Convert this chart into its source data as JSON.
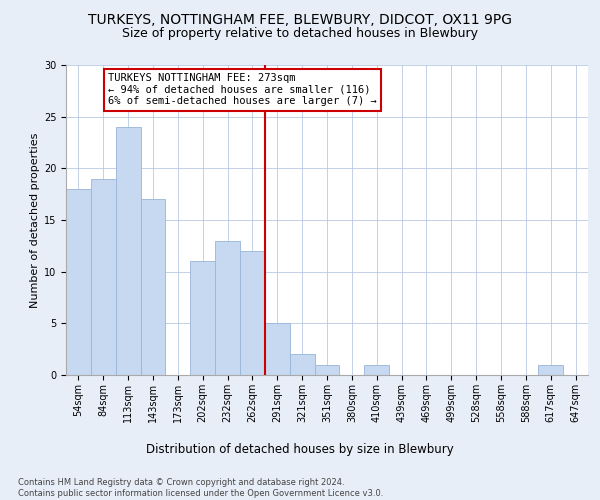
{
  "title": "TURKEYS, NOTTINGHAM FEE, BLEWBURY, DIDCOT, OX11 9PG",
  "subtitle": "Size of property relative to detached houses in Blewbury",
  "xlabel": "Distribution of detached houses by size in Blewbury",
  "ylabel": "Number of detached properties",
  "categories": [
    "54sqm",
    "84sqm",
    "113sqm",
    "143sqm",
    "173sqm",
    "202sqm",
    "232sqm",
    "262sqm",
    "291sqm",
    "321sqm",
    "351sqm",
    "380sqm",
    "410sqm",
    "439sqm",
    "469sqm",
    "499sqm",
    "528sqm",
    "558sqm",
    "588sqm",
    "617sqm",
    "647sqm"
  ],
  "values": [
    18,
    19,
    24,
    17,
    0,
    11,
    13,
    12,
    5,
    2,
    1,
    0,
    1,
    0,
    0,
    0,
    0,
    0,
    0,
    1,
    0
  ],
  "bar_color": "#c6d9f1",
  "bar_edge_color": "#9ab5d9",
  "vline_color": "#cc0000",
  "vline_pos": 7.5,
  "annotation_text": "TURKEYS NOTTINGHAM FEE: 273sqm\n← 94% of detached houses are smaller (116)\n6% of semi-detached houses are larger (7) →",
  "annotation_box_color": "#cc0000",
  "ylim": [
    0,
    30
  ],
  "yticks": [
    0,
    5,
    10,
    15,
    20,
    25,
    30
  ],
  "footer": "Contains HM Land Registry data © Crown copyright and database right 2024.\nContains public sector information licensed under the Open Government Licence v3.0.",
  "bg_color": "#e8eef8",
  "plot_bg_color": "#ffffff",
  "title_fontsize": 10,
  "subtitle_fontsize": 9,
  "ylabel_fontsize": 8,
  "xlabel_fontsize": 8.5,
  "tick_fontsize": 7,
  "footer_fontsize": 6,
  "annotation_fontsize": 7.5
}
